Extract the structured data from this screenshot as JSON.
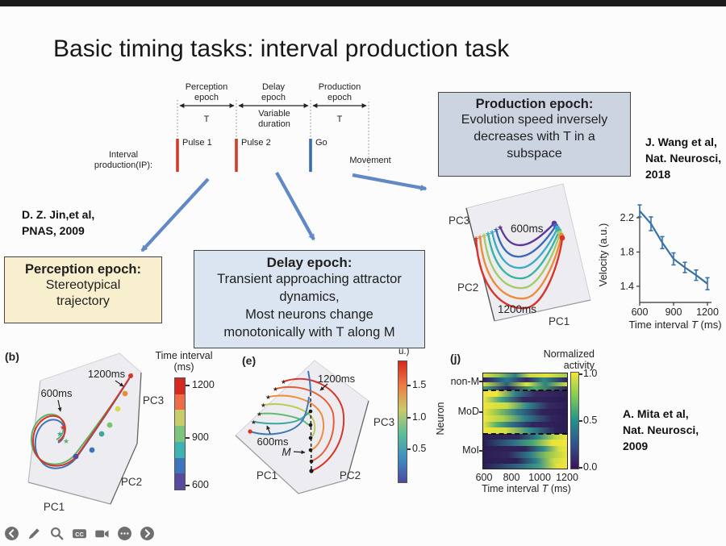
{
  "slide": {
    "title": "Basic timing tasks: interval production task",
    "diagram": {
      "epoch1_label": "Perception\nepoch",
      "epoch2_label": "Delay\nepoch",
      "epoch3_label": "Production\nepoch",
      "epoch1_duration": "T",
      "epoch2_duration": "Variable\nduration",
      "epoch3_duration": "T",
      "pulse1_label": "Pulse 1",
      "pulse2_label": "Pulse 2",
      "go_label": "Go",
      "movement_label": "Movement",
      "row_label": "Interval\nproduction(IP):",
      "pulse_color": "#d23b2a",
      "go_color": "#3a6cb4",
      "connector_arrow_color": "#6089c5"
    },
    "callouts": {
      "perception_title": "Perception epoch:",
      "perception_body": "Stereotypical\ntrajectory",
      "perception_bg": "#f8efcf",
      "delay_title": "Delay epoch:",
      "delay_body": "Transient approaching attractor\ndynamics,\nMost neurons change\nmonotonically with T along M",
      "delay_bg": "#dbe5f1",
      "production_title": "Production epoch:",
      "production_body": "Evolution speed inversely\ndecreases with T in a\nsubspace",
      "production_bg": "#ccd4e2"
    },
    "citations": {
      "jin": "D. Z. Jin,et al,\nPNAS, 2009",
      "wang": "J. Wang et al,\nNat. Neurosci,\n2018",
      "mita": "A. Mita et al,\nNat. Neurosci,\n2009"
    }
  },
  "charts": {
    "prod3d": {
      "pc1": "PC1",
      "pc2": "PC2",
      "pc3": "PC3",
      "start_label": "600ms",
      "end_label": "1200ms"
    },
    "velocity": {
      "ylabel": "Velocity (a.u.)",
      "xlabel_pre": "Time interval ",
      "xlabel_T": "T",
      "xlabel_post": " (ms)",
      "ytick1": "2.2",
      "ytick2": "1.8",
      "ytick3": "1.4",
      "xtick1": "600",
      "xtick2": "900",
      "xtick3": "1200",
      "line_color": "#3a72a8"
    },
    "b3d": {
      "panel": "(b)",
      "pc1": "PC1",
      "pc2": "PC2",
      "pc3": "PC3",
      "start_label": "600ms",
      "end_label": "1200ms"
    },
    "interval_colorbar": {
      "title": "Time interval\n(ms)",
      "tick1": "1200",
      "tick2": "900",
      "tick3": "600",
      "segments": [
        "#d7281e",
        "#ed6d49",
        "#c9cb68",
        "#7cc47c",
        "#3fb3b3",
        "#3e76bd",
        "#5a4a9e"
      ]
    },
    "e3d": {
      "panel": "(e)",
      "pc1": "PC1",
      "pc2": "PC2",
      "pc3": "PC3",
      "start_label": "600ms",
      "end_label": "1200ms",
      "manifold_label": "M"
    },
    "e_colorbar": {
      "fragment": "u.)",
      "tick1": "1.5",
      "tick2": "1.0",
      "tick3": "0.5",
      "gradient": "linear-gradient(180deg,#d7281e 0%,#ee7a45 20%,#c9cb68 40%,#5cbd9a 60%,#3e8ec0 80%,#4a4a9e 100%)"
    },
    "heatmap": {
      "panel": "(j)",
      "ylabel": "Neuron",
      "group1": "non-M",
      "group2": "MoD",
      "group3": "MoI",
      "xtick1": "600",
      "xtick2": "800",
      "xtick3": "1000",
      "xtick4": "1200",
      "xlabel_pre": "Time interval ",
      "xlabel_T": "T",
      "xlabel_post": " (ms)",
      "colorbar_title": "Normalized\nactivity",
      "ctick1": "1.0",
      "ctick2": "0.5",
      "ctick3": "0.0",
      "colorbar_gradient": "linear-gradient(180deg,#f4e43c 0%,#7ecb54 25%,#21918c 50%,#33528b 75%,#3c1257 100%)",
      "rows": {
        "nonM": [
          "linear-gradient(90deg,#dfe03a 0%,#8fc94f 18%,#2f7d8c 38%,#c7da45 55%,#e4e23b 75%,#9fcd4d 100%)",
          "linear-gradient(90deg,#33205e 0%,#2a7a8c 28%,#35285f 52%,#2f8a80 72%,#312360 100%)",
          "linear-gradient(90deg,#d8e03c 0%,#2a5f7e 28%,#e0e43e 52%,#2f7f86 74%,#cddd40 100%)",
          "linear-gradient(90deg,#3f9d7e 0%,#2c215c 30%,#46b06a 62%,#31245e 100%)"
        ],
        "mod": [
          "linear-gradient(90deg,#f0e53a 0%,#f0e53a 16%,#2e818c 38%,#372a63 62%,#2e1f55 100%)",
          "linear-gradient(90deg,#f2e73c 0%,#3f9f86 22%,#33295e 48%,#2a1b50 100%)",
          "linear-gradient(90deg,#f0e53a 0%,#c8dc46 28%,#2f8a8c 52%,#342a62 78%,#2c1e54 100%)",
          "linear-gradient(90deg,#eee43a 0%,#8cc455 18%,#2d7d8a 40%,#30235a 70%,#2a1c51 100%)",
          "linear-gradient(90deg,#f1e63b 0%,#abd04e 24%,#2e7f8a 50%,#31255c 82%,#2b1d52 100%)",
          "linear-gradient(90deg,#efe53a 0%,#5cb46a 15%,#2c6f86 34%,#322760 58%,#2b1d52 100%)",
          "linear-gradient(90deg,#f0e53a 0%,#d3de43 27%,#2f8c8c 56%,#2f225a 86%,#2b1d52 100%)"
        ],
        "moi": [
          "linear-gradient(90deg,#2c1e54 0%,#2f2a60 42%,#2e8a8c 66%,#bcd84a 86%,#f0e53a 100%)",
          "linear-gradient(90deg,#2b1d52 0%,#2c6f86 36%,#49aa73 60%,#e8e23c 82%,#f2e73c 100%)",
          "linear-gradient(90deg,#2c1e54 0%,#30235a 50%,#2f8a8c 72%,#d3de43 90%,#f0e53a 100%)",
          "linear-gradient(90deg,#2b1d52 0%,#322760 30%,#2d7d8a 56%,#8cc455 76%,#eee43a 100%)",
          "linear-gradient(90deg,#2c1e54 0%,#2e2158 40%,#2e818c 64%,#c8dc46 84%,#f1e63b 100%)",
          "linear-gradient(90deg,#2b1d52 0%,#2c6f86 46%,#3f9f86 68%,#e8e23c 88%,#f0e53a 100%)"
        ]
      }
    }
  },
  "chart_data": [
    {
      "id": "velocity_vs_interval",
      "type": "line",
      "x": [
        600,
        700,
        800,
        900,
        1000,
        1100,
        1200
      ],
      "y": [
        2.28,
        2.13,
        1.91,
        1.72,
        1.62,
        1.53,
        1.43
      ],
      "yerr": [
        0.07,
        0.08,
        0.07,
        0.07,
        0.06,
        0.06,
        0.07
      ],
      "xlabel": "Time interval T (ms)",
      "ylabel": "Velocity (a.u.)",
      "xticks": [
        600,
        900,
        1200
      ],
      "yticks": [
        1.4,
        1.8,
        2.2
      ],
      "line_color": "#3a72a8"
    },
    {
      "id": "production_epoch_state_space",
      "type": "line",
      "axes": {
        "x": "PC1",
        "y": "PC2",
        "z": "PC3"
      },
      "annotations": [
        "600ms",
        "1200ms"
      ],
      "series_note": "Nested U-shaped neural trajectories for intervals 600-1200 ms; innermost purple = 600ms, outermost red = 1200ms; stars mark trajectory starts, dots mark ends"
    },
    {
      "id": "b_state_space",
      "type": "line",
      "axes": {
        "x": "PC1",
        "y": "PC2",
        "z": "PC3"
      },
      "annotations": [
        "600ms",
        "1200ms"
      ],
      "colorbar": {
        "title": "Time interval (ms)",
        "ticks": [
          1200,
          900,
          600
        ]
      },
      "series_note": "Single stereotypical hook-shaped trajectory bundle; colored markers along the path encode elapsed time from 600ms (purple) to 1200ms (red)"
    },
    {
      "id": "e_state_space",
      "type": "line",
      "axes": {
        "x": "PC1",
        "y": "PC2",
        "z": "PC3"
      },
      "annotations": [
        "600ms",
        "1200ms",
        "M"
      ],
      "colorbar": {
        "ticks": [
          1.5,
          1.0,
          0.5
        ],
        "visible_label_fragment": "u.)"
      },
      "series_note": "Fan of delay-epoch trajectories converging onto attractor manifold M (dashed line with black dots); long intervals red, short intervals blue/green"
    },
    {
      "id": "j_neuron_heatmap",
      "type": "heatmap",
      "xlabel": "Time interval T (ms)",
      "ylabel": "Neuron",
      "xticks": [
        600,
        800,
        1000,
        1200
      ],
      "row_groups": [
        "non-M",
        "MoD",
        "MoI"
      ],
      "colorbar": {
        "title": "Normalized activity",
        "ticks": [
          1.0,
          0.5,
          0.0
        ]
      },
      "pattern_note": "non-M: mixed activity across T; MoD: activity monotonically decreases with T; MoI: activity monotonically increases with T"
    }
  ],
  "toolbar": {
    "cc_label": "CC",
    "icon_color": "#6f6f6f",
    "items": [
      "back",
      "annotate-pen",
      "zoom-search",
      "closed-captions",
      "camera",
      "more-options",
      "forward"
    ]
  }
}
